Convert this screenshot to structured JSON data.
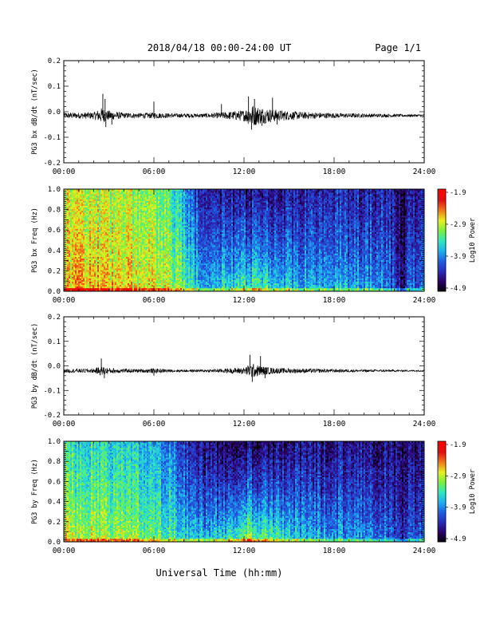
{
  "header": {
    "title": "2018/04/18  00:00-24:00 UT",
    "page": "Page 1/1"
  },
  "footer": {
    "xlabel": "Universal Time (hh:mm)"
  },
  "colors": {
    "trace": "#000000",
    "colormap": [
      "#000000",
      "#2a0066",
      "#2a2ab8",
      "#1f5fe0",
      "#1fb0f0",
      "#2ee8c0",
      "#7af040",
      "#e8f020",
      "#f07818",
      "#e01010",
      "#ff0000"
    ]
  },
  "chart_data": [
    {
      "type": "line",
      "ylabel": "PG3 bx dB/dt (nT/sec)",
      "xlim": [
        0,
        24
      ],
      "ylim": [
        -0.2,
        0.2
      ],
      "xticks": [
        "00:00",
        "06:00",
        "12:00",
        "18:00",
        "24:00"
      ],
      "yticks": [
        "0.2",
        "0.1",
        "0.0",
        "-0.1",
        "-0.2"
      ],
      "baseline": -0.015,
      "noise_profile": {
        "hours": [
          0,
          1,
          2,
          2.5,
          3,
          4,
          5,
          6,
          7,
          8,
          9,
          10,
          11,
          12,
          12.5,
          13,
          13.5,
          14,
          15,
          16,
          17,
          18,
          19,
          20,
          21,
          22,
          23,
          24
        ],
        "amplitude": [
          0.012,
          0.012,
          0.014,
          0.03,
          0.02,
          0.011,
          0.01,
          0.012,
          0.009,
          0.008,
          0.008,
          0.01,
          0.016,
          0.022,
          0.045,
          0.035,
          0.03,
          0.025,
          0.018,
          0.014,
          0.012,
          0.01,
          0.009,
          0.008,
          0.007,
          0.006,
          0.005,
          0.005
        ]
      },
      "spikes": [
        {
          "t": 2.6,
          "v": 0.07
        },
        {
          "t": 2.75,
          "v": 0.05
        },
        {
          "t": 2.8,
          "v": -0.06
        },
        {
          "t": 3.2,
          "v": -0.05
        },
        {
          "t": 6.0,
          "v": 0.04
        },
        {
          "t": 10.5,
          "v": 0.03
        },
        {
          "t": 12.3,
          "v": 0.06
        },
        {
          "t": 12.5,
          "v": -0.07
        },
        {
          "t": 12.7,
          "v": 0.05
        },
        {
          "t": 13.2,
          "v": -0.055
        },
        {
          "t": 13.9,
          "v": 0.055
        },
        {
          "t": 14.2,
          "v": -0.05
        }
      ]
    },
    {
      "type": "heatmap",
      "ylabel": "PG3 bx Freq (Hz)",
      "xlim": [
        0,
        24
      ],
      "ylim": [
        0.0,
        1.0
      ],
      "xticks": [
        "00:00",
        "06:00",
        "12:00",
        "18:00",
        "24:00"
      ],
      "yticks": [
        "1.0",
        "0.8",
        "0.6",
        "0.4",
        "0.2",
        "0.0"
      ],
      "colorbar": {
        "label": "Log10 Power",
        "min": -4.9,
        "max": -1.9,
        "ticks": [
          "-1.9",
          "-2.9",
          "-3.9",
          "-4.9"
        ]
      },
      "hours": [
        0,
        2,
        4,
        6,
        7,
        8,
        9,
        10,
        12,
        13,
        14,
        16,
        18,
        20,
        21,
        22,
        22.5,
        23,
        24
      ],
      "power_low_freq": [
        -2.6,
        -2.6,
        -2.7,
        -2.8,
        -2.9,
        -3.1,
        -3.4,
        -3.5,
        -3.2,
        -3.1,
        -3.3,
        -3.5,
        -3.6,
        -3.6,
        -3.7,
        -4.0,
        -4.5,
        -3.9,
        -3.9
      ],
      "power_high_freq": [
        -2.9,
        -3.0,
        -3.0,
        -3.1,
        -3.3,
        -3.7,
        -4.2,
        -4.4,
        -4.5,
        -4.5,
        -4.4,
        -4.4,
        -4.3,
        -4.4,
        -4.3,
        -4.4,
        -4.7,
        -4.4,
        -4.4
      ]
    },
    {
      "type": "line",
      "ylabel": "PG3 by dB/dt (nT/sec)",
      "xlim": [
        0,
        24
      ],
      "ylim": [
        -0.2,
        0.2
      ],
      "xticks": [
        "00:00",
        "06:00",
        "12:00",
        "18:00",
        "24:00"
      ],
      "yticks": [
        "0.2",
        "0.1",
        "0.0",
        "-0.1",
        "-0.2"
      ],
      "baseline": -0.02,
      "noise_profile": {
        "hours": [
          0,
          1,
          2,
          2.5,
          3,
          4,
          5,
          6,
          7,
          8,
          9,
          10,
          11,
          12,
          12.5,
          13,
          13.5,
          14,
          15,
          16,
          17,
          18,
          19,
          20,
          21,
          22,
          23,
          24
        ],
        "amplitude": [
          0.008,
          0.008,
          0.009,
          0.02,
          0.012,
          0.008,
          0.007,
          0.01,
          0.006,
          0.005,
          0.005,
          0.007,
          0.01,
          0.014,
          0.03,
          0.022,
          0.016,
          0.012,
          0.01,
          0.009,
          0.008,
          0.007,
          0.006,
          0.005,
          0.005,
          0.004,
          0.003,
          0.003
        ]
      },
      "spikes": [
        {
          "t": 2.5,
          "v": 0.03
        },
        {
          "t": 2.7,
          "v": -0.05
        },
        {
          "t": 6.0,
          "v": -0.04
        },
        {
          "t": 12.4,
          "v": 0.045
        },
        {
          "t": 12.55,
          "v": -0.065
        },
        {
          "t": 13.1,
          "v": 0.04
        },
        {
          "t": 13.4,
          "v": -0.05
        }
      ]
    },
    {
      "type": "heatmap",
      "ylabel": "PG3 by Freq (Hz)",
      "xlim": [
        0,
        24
      ],
      "ylim": [
        0.0,
        1.0
      ],
      "xticks": [
        "00:00",
        "06:00",
        "12:00",
        "18:00",
        "24:00"
      ],
      "yticks": [
        "1.0",
        "0.8",
        "0.6",
        "0.4",
        "0.2",
        "0.0"
      ],
      "colorbar": {
        "label": "Log10 Power",
        "min": -4.9,
        "max": -1.9,
        "ticks": [
          "-1.9",
          "-2.9",
          "-3.9",
          "-4.9"
        ]
      },
      "hours": [
        0,
        2,
        4,
        6,
        7,
        8,
        9,
        10,
        12,
        13,
        14,
        16,
        18,
        20,
        21,
        22,
        22.5,
        23,
        24
      ],
      "power_low_freq": [
        -2.8,
        -2.9,
        -3.0,
        -3.1,
        -3.2,
        -3.3,
        -3.5,
        -3.4,
        -2.8,
        -2.9,
        -3.1,
        -3.5,
        -3.6,
        -3.7,
        -3.7,
        -4.0,
        -4.5,
        -3.9,
        -3.9
      ],
      "power_high_freq": [
        -3.4,
        -3.5,
        -3.6,
        -3.7,
        -3.9,
        -4.2,
        -4.5,
        -4.6,
        -4.6,
        -4.6,
        -4.6,
        -4.5,
        -4.5,
        -4.5,
        -4.5,
        -4.5,
        -4.8,
        -4.5,
        -4.5
      ]
    }
  ]
}
